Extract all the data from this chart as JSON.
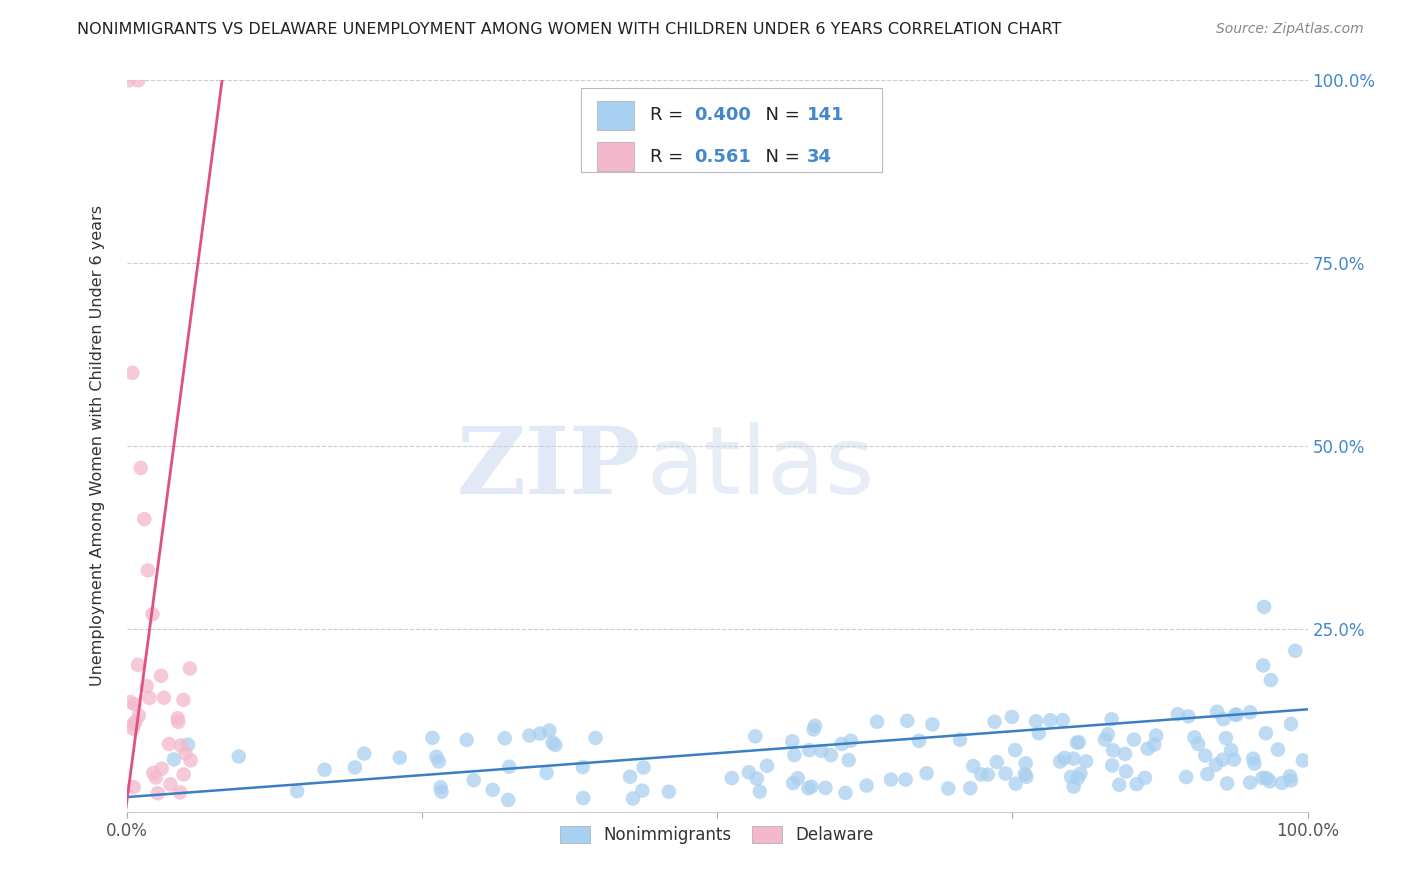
{
  "title": "NONIMMIGRANTS VS DELAWARE UNEMPLOYMENT AMONG WOMEN WITH CHILDREN UNDER 6 YEARS CORRELATION CHART",
  "source": "Source: ZipAtlas.com",
  "ylabel": "Unemployment Among Women with Children Under 6 years",
  "xlabel": "",
  "xlim": [
    0.0,
    1.0
  ],
  "ylim": [
    0.0,
    1.0
  ],
  "xtick_positions": [
    0.0,
    0.25,
    0.5,
    0.75,
    1.0
  ],
  "xtick_labels": [
    "0.0%",
    "",
    "",
    "",
    "100.0%"
  ],
  "ytick_labels_right": [
    "100.0%",
    "75.0%",
    "50.0%",
    "25.0%"
  ],
  "ytick_positions_right": [
    1.0,
    0.75,
    0.5,
    0.25
  ],
  "legend_labels": [
    "Nonimmigrants",
    "Delaware"
  ],
  "blue_color": "#a8d0f0",
  "blue_line_color": "#3a7fc1",
  "pink_color": "#f4b8cc",
  "pink_line_color": "#e05080",
  "R_blue": 0.4,
  "N_blue": 141,
  "R_pink": 0.561,
  "N_pink": 34,
  "background_color": "#ffffff",
  "grid_color": "#cccccc",
  "title_color": "#222222",
  "right_tick_color": "#4488cc",
  "watermark_zip_color": "#c8d8ee",
  "watermark_atlas_color": "#c8d8ee"
}
